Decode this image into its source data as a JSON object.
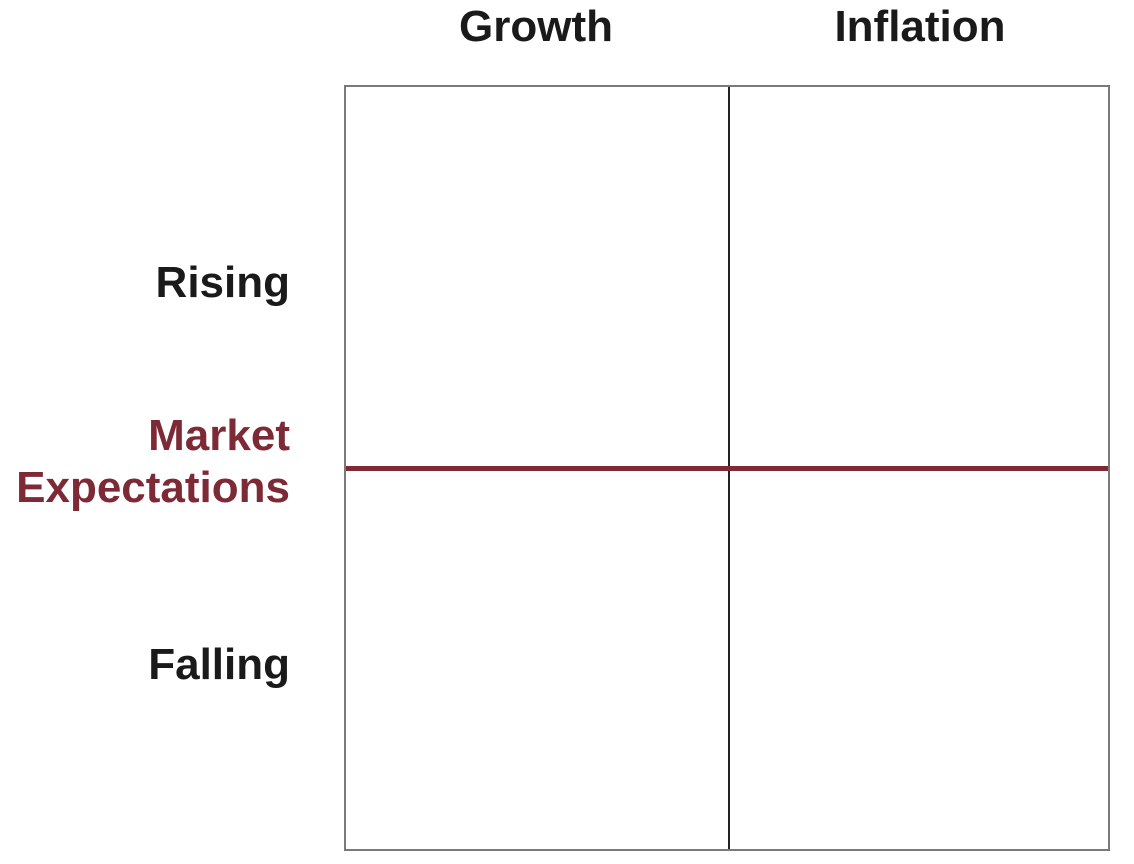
{
  "columns": {
    "growth": "Growth",
    "inflation": "Inflation"
  },
  "rows": {
    "rising": "Rising",
    "falling": "Falling"
  },
  "market_expectations": {
    "line1": "Market",
    "line2": "Expectations"
  },
  "colors": {
    "accent": "#7d2a36",
    "text": "#1a1a1a",
    "grid_border": "#7a7a7a",
    "divider": "#222222"
  }
}
